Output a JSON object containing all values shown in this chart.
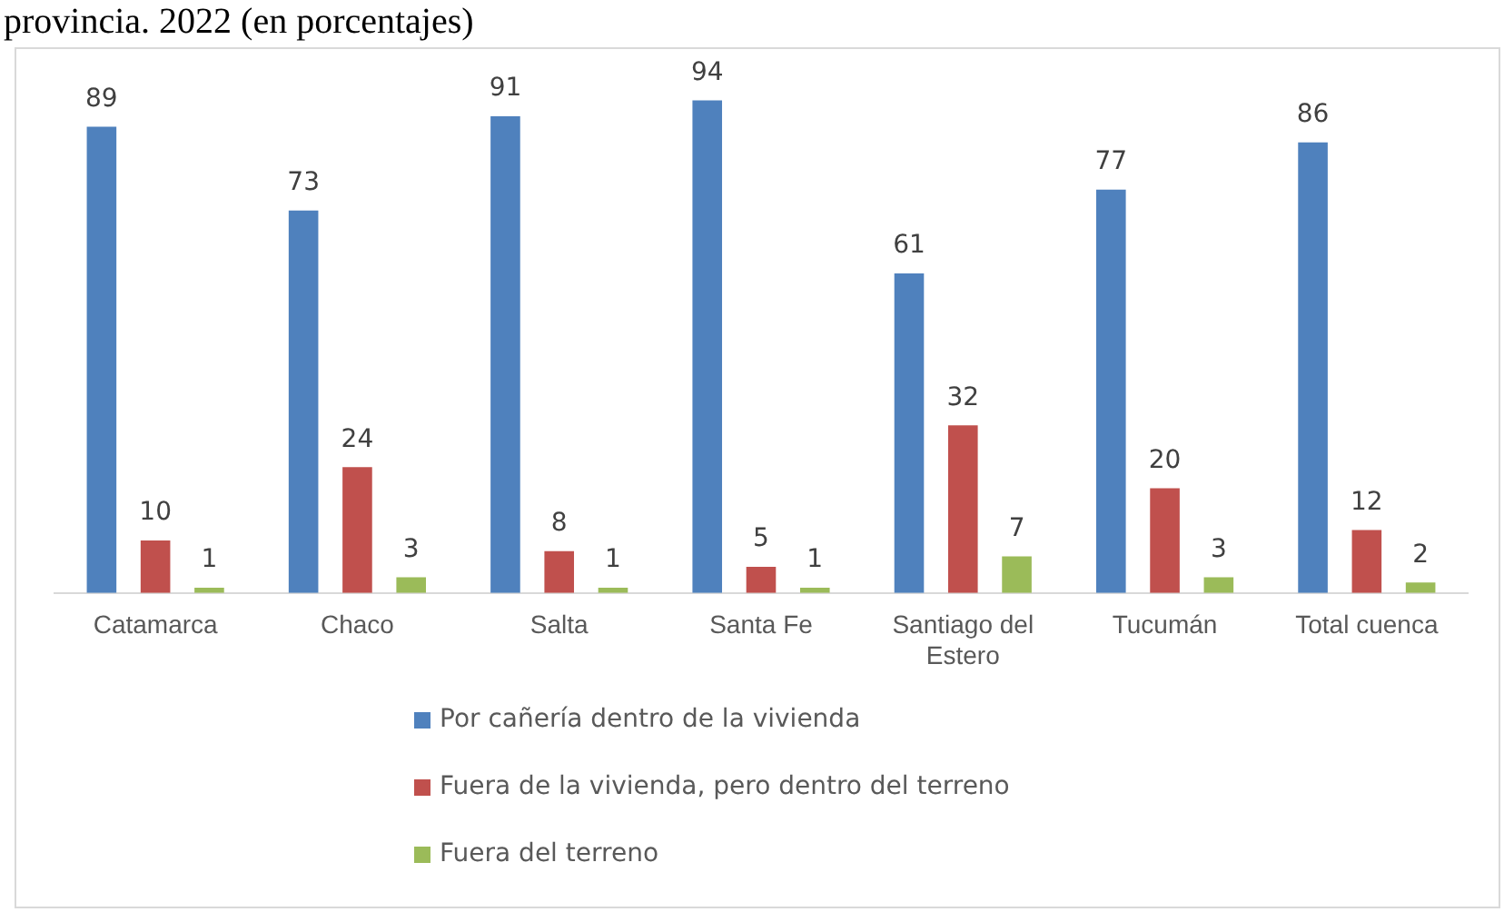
{
  "chart_data": {
    "type": "bar",
    "title": "provincia. 2022 (en porcentajes)",
    "categories": [
      "Catamarca",
      "Chaco",
      "Salta",
      "Santa Fe",
      "Santiago del Estero",
      "Tucumán",
      "Total cuenca"
    ],
    "series": [
      {
        "name": "Por cañería dentro de la vivienda",
        "color": "#4f81bd",
        "values": [
          89,
          73,
          91,
          94,
          61,
          77,
          86
        ]
      },
      {
        "name": "Fuera de la vivienda, pero dentro del terreno",
        "color": "#c0504d",
        "values": [
          10,
          24,
          8,
          5,
          32,
          20,
          12
        ]
      },
      {
        "name": "Fuera del terreno",
        "color": "#9bbb59",
        "values": [
          1,
          3,
          1,
          1,
          7,
          3,
          2
        ]
      }
    ],
    "data_labels": true,
    "grid": false,
    "legend": "bottom"
  }
}
